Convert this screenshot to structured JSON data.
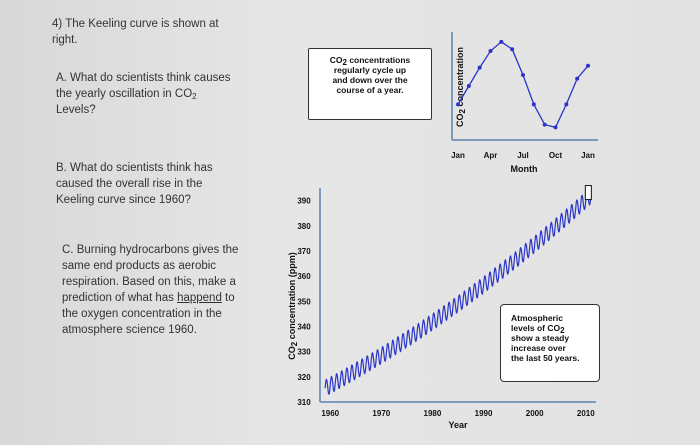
{
  "questions": {
    "q4_line1": "4) The Keeling curve is shown at",
    "q4_line2": "right.",
    "a_line1": "A. What do scientists think causes",
    "a_line2_pre": "the yearly oscillation in CO",
    "a_line2_sub": "2",
    "a_line3": "Levels?",
    "b_line1": "B. What do scientists think has",
    "b_line2": "caused the overall rise in the",
    "b_line3": "Keeling curve since 1960?",
    "c_line1": "C. Burning hydrocarbons gives the",
    "c_line2": "same end products as aerobic",
    "c_line3": "respiration. Based on this, make a",
    "c_line4_pre": "prediction of what has ",
    "c_line4_u": "happend",
    "c_line4_post": " to",
    "c_line5": "the oxygen concentration in the",
    "c_line6": "atmosphere science 1960."
  },
  "callout_seasonal": {
    "line1_pre": "CO",
    "line1_sub": "2",
    "line1_post": " concentrations",
    "line2": "regularly cycle up",
    "line3": "and down over the",
    "line4": "course of a year."
  },
  "callout_trend": {
    "line1": "Atmospheric",
    "line2_pre": "levels of CO",
    "line2_sub": "2",
    "line3": "show a steady",
    "line4": "increase over",
    "line5": "the last 50 years."
  },
  "colors": {
    "series": "#2a35c8",
    "axis": "#7d9ab8",
    "text": "#333333"
  },
  "chart_data": [
    {
      "type": "line",
      "title": "",
      "xlabel": "Month",
      "ylabel_pre": "CO",
      "ylabel_sub": "2",
      "ylabel_post": " concentration",
      "x_ticks": [
        "Jan",
        "Apr",
        "Jul",
        "Oct",
        "Jan"
      ],
      "x": [
        0,
        1,
        2,
        3,
        4,
        5,
        6,
        7,
        8,
        9,
        10,
        11,
        12
      ],
      "values": [
        0.3,
        0.5,
        0.7,
        0.88,
        0.98,
        0.9,
        0.62,
        0.3,
        0.08,
        0.05,
        0.3,
        0.58,
        0.72
      ],
      "ylim": [
        0,
        1
      ],
      "grid": false
    },
    {
      "type": "line",
      "title": "",
      "xlabel": "Year",
      "ylabel_pre": "CO",
      "ylabel_sub": "2",
      "ylabel_post": " concentration (ppm)",
      "y_ticks": [
        "390",
        "380",
        "370",
        "360",
        "350",
        "340",
        "330",
        "320",
        "310"
      ],
      "x_ticks": [
        "1960",
        "1970",
        "1980",
        "1990",
        "2000",
        "2010"
      ],
      "xlim": [
        1958,
        2012
      ],
      "ylim": [
        310,
        395
      ],
      "trend_start": 315.5,
      "trend_end": 392.0,
      "seasonal_amplitude_ppm": 3.2,
      "grid": false
    }
  ]
}
